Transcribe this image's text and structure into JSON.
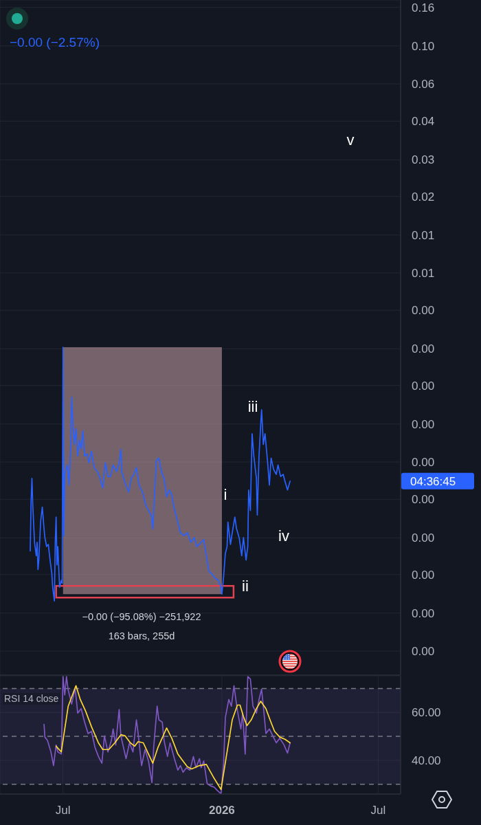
{
  "chart_data": [
    {
      "type": "line",
      "color": "#2962ff",
      "log": true,
      "grid": true,
      "tick_labels": "y",
      "x": [
        "2025-05-24",
        "2025-05-25",
        "2025-05-26",
        "2025-05-27",
        "2025-05-28",
        "2025-05-29",
        "2025-05-31",
        "2025-06-01",
        "2025-06-02",
        "2025-06-03",
        "2025-06-05",
        "2025-06-07",
        "2025-06-09",
        "2025-06-10",
        "2025-06-12",
        "2025-06-14",
        "2025-06-16",
        "2025-06-18",
        "2025-06-19",
        "2025-06-21",
        "2025-06-22",
        "2025-06-23",
        "2025-06-24",
        "2025-06-25",
        "2025-06-27",
        "2025-06-29",
        "2025-06-30",
        "2025-07-01",
        "2025-07-02",
        "2025-07-03",
        "2025-07-06",
        "2025-07-08",
        "2025-07-10",
        "2025-07-11",
        "2025-07-12",
        "2025-07-14",
        "2025-07-16",
        "2025-07-18",
        "2025-07-20",
        "2025-07-22",
        "2025-07-24",
        "2025-07-26",
        "2025-07-29",
        "2025-07-31",
        "2025-08-03",
        "2025-08-06",
        "2025-08-10",
        "2025-08-13",
        "2025-08-16",
        "2025-08-19",
        "2025-08-22",
        "2025-08-25",
        "2025-08-28",
        "2025-09-01",
        "2025-09-04",
        "2025-09-06",
        "2025-09-07",
        "2025-09-11",
        "2025-09-15",
        "2025-09-18",
        "2025-09-21",
        "2025-09-24",
        "2025-09-27",
        "2025-10-01",
        "2025-10-05",
        "2025-10-11",
        "2025-10-13",
        "2025-10-17",
        "2025-10-20",
        "2025-10-23",
        "2025-10-26",
        "2025-10-29",
        "2025-11-01",
        "2025-11-04",
        "2025-11-06",
        "2025-11-10",
        "2025-11-14",
        "2025-11-18",
        "2025-11-22",
        "2025-11-26",
        "2025-11-30",
        "2025-12-03",
        "2025-12-08",
        "2025-12-11",
        "2025-12-14",
        "2025-12-17",
        "2025-12-20",
        "2025-12-24",
        "2025-12-28",
        "2025-12-31",
        "2026-01-01",
        "2026-01-03",
        "2026-01-05",
        "2026-01-07",
        "2026-01-08",
        "2026-01-11",
        "2026-01-13",
        "2026-01-16",
        "2026-01-18",
        "2026-01-21",
        "2026-01-24",
        "2026-01-26",
        "2026-01-29",
        "2026-01-31",
        "2026-02-01",
        "2026-02-03",
        "2026-02-05",
        "2026-02-07",
        "2026-02-10",
        "2026-02-11",
        "2026-02-13",
        "2026-02-15",
        "2026-02-16",
        "2026-02-18",
        "2026-02-20",
        "2026-02-23",
        "2026-02-25",
        "2026-02-27",
        "2026-03-02",
        "2026-03-05",
        "2026-03-07",
        "2026-03-10",
        "2026-03-13",
        "2026-03-15",
        "2026-03-18",
        "2026-03-21"
      ],
      "values": [
        0.000213,
        0.000389,
        0.000516,
        0.00037,
        0.000296,
        0.000237,
        0.000201,
        0.000237,
        0.00017,
        0.000191,
        0.000303,
        0.000364,
        0.000279,
        0.000251,
        0.000225,
        0.000231,
        0.000191,
        0.000162,
        0.000137,
        0.000116,
        0.000237,
        0.000322,
        0.00018,
        0.000225,
        0.000137,
        0.000149,
        0.000144,
        0.00255,
        0.000257,
        0.000542,
        0.000608,
        0.000475,
        0.00078,
        0.00139,
        0.00109,
        0.00078,
        0.000944,
        0.000678,
        0.00082,
        0.000736,
        0.00092,
        0.000678,
        0.000695,
        0.000624,
        0.000718,
        0.000589,
        0.00056,
        0.000516,
        0.000459,
        0.000624,
        0.000528,
        0.000528,
        0.000608,
        0.00056,
        0.000624,
        0.000736,
        0.00056,
        0.000486,
        0.000437,
        0.000516,
        0.000542,
        0.000589,
        0.000475,
        0.000437,
        0.00037,
        0.00033,
        0.000279,
        0.000639,
        0.000661,
        0.00056,
        0.000516,
        0.000412,
        0.000448,
        0.000423,
        0.00037,
        0.000314,
        0.000266,
        0.000257,
        0.000266,
        0.000237,
        0.000251,
        0.000225,
        0.000237,
        0.000245,
        0.000201,
        0.000166,
        0.000162,
        0.000153,
        0.000149,
        0.000137,
        0.000126,
        0.000156,
        0.000207,
        0.000225,
        0.000303,
        0.000231,
        0.000266,
        0.000322,
        0.000279,
        0.000251,
        0.000201,
        0.000251,
        0.000191,
        0.000225,
        0.000448,
        0.000349,
        0.00089,
        0.000678,
        0.000516,
        0.00033,
        0.000678,
        0.001,
        0.00119,
        0.00078,
        0.00089,
        0.000624,
        0.000475,
        0.000661,
        0.000574,
        0.000542,
        0.000608,
        0.000528,
        0.000542,
        0.000499,
        0.000448,
        0.000499
      ],
      "xlim": [
        "2025-04-19",
        "2026-07-27"
      ],
      "xticks": [
        {
          "value": "2025-07-01",
          "label": null
        },
        {
          "value": "2026-01-01",
          "label": null
        },
        {
          "value": "2026-07-01",
          "label": null
        }
      ],
      "ylim": [
        4.7e-05,
        0.175
      ],
      "yticks": [
        0.16,
        {
          "value": 0.1,
          "label": "0.10"
        },
        {
          "value": 0.063,
          "label": "0.06"
        },
        0.04,
        {
          "value": 0.025,
          "label": "0.03"
        },
        {
          "value": 0.016,
          "label": "0.02"
        },
        0.01,
        {
          "value": 0.0063,
          "label": "0.01"
        },
        {
          "value": 0.004,
          "label": "0.00"
        },
        {
          "value": 0.0025,
          "label": "0.00"
        },
        {
          "value": 0.0016,
          "label": "0.00"
        },
        {
          "value": 0.001,
          "label": "0.00"
        },
        {
          "value": 0.00063,
          "label": "0.00"
        },
        {
          "value": 0.0004,
          "label": "0.00"
        },
        {
          "value": 0.00025,
          "label": "0.00"
        },
        {
          "value": 0.00016,
          "label": "0.00"
        },
        {
          "value": 0.0001,
          "label": "0.00"
        },
        {
          "value": 6.3e-05,
          "label": "0.00"
        }
      ],
      "bands": [
        {
          "axis": "x",
          "from": "2025-07-01",
          "to": "2026-01-01",
          "color": "#c9a0a8"
        }
      ],
      "annotations": [
        "−0.00 (−2.57%)",
        "−0.00 (−95.08%) −251,922",
        "163 bars, 255d",
        "i",
        "ii",
        "iii",
        "iv",
        "v",
        "04:36:45"
      ]
    },
    {
      "type": "line",
      "title": "RSI 14 close",
      "grid": true,
      "series": [
        {
          "color": "#7e57c2",
          "x": [
            "2025-06-09",
            "2025-06-10",
            "2025-06-13",
            "2025-06-17",
            "2025-06-20",
            "2025-06-23",
            "2025-06-25",
            "2025-06-29",
            "2025-07-01",
            "2025-07-03",
            "2025-07-05",
            "2025-07-07",
            "2025-07-11",
            "2025-07-15",
            "2025-07-18",
            "2025-07-22",
            "2025-07-26",
            "2025-07-30",
            "2025-08-03",
            "2025-08-07",
            "2025-08-11",
            "2025-08-15",
            "2025-08-18",
            "2025-08-22",
            "2025-08-26",
            "2025-08-28",
            "2025-08-31",
            "2025-09-04",
            "2025-09-06",
            "2025-09-12",
            "2025-09-16",
            "2025-09-20",
            "2025-09-24",
            "2025-09-26",
            "2025-09-30",
            "2025-10-04",
            "2025-10-08",
            "2025-10-12",
            "2025-10-14",
            "2025-10-18",
            "2025-10-20",
            "2025-10-24",
            "2025-10-26",
            "2025-10-30",
            "2025-11-02",
            "2025-11-07",
            "2025-11-11",
            "2025-11-14",
            "2025-11-17",
            "2025-11-21",
            "2025-11-25",
            "2025-11-29",
            "2025-12-02",
            "2025-12-06",
            "2025-12-08",
            "2025-12-11",
            "2025-12-15",
            "2025-12-19",
            "2025-12-23",
            "2025-12-27",
            "2025-12-31",
            "2026-01-03",
            "2026-01-05",
            "2026-01-09",
            "2026-01-12",
            "2026-01-15",
            "2026-01-19",
            "2026-01-23",
            "2026-01-25",
            "2026-01-28",
            "2026-01-31",
            "2026-02-03",
            "2026-02-06",
            "2026-02-10",
            "2026-02-13",
            "2026-02-16",
            "2026-02-18",
            "2026-02-21",
            "2026-02-25",
            "2026-03-01",
            "2026-03-05",
            "2026-03-09",
            "2026-03-14",
            "2026-03-18",
            "2026-03-21"
          ],
          "values": [
            55.0,
            49.7,
            48.3,
            43.5,
            37.8,
            46.4,
            43.5,
            42.6,
            75,
            67.3,
            75,
            69.3,
            63.5,
            70.2,
            59.7,
            61.6,
            55.9,
            51.2,
            52.1,
            45.4,
            41.6,
            38.8,
            50.2,
            43.5,
            48.3,
            53.1,
            46.4,
            61.2,
            50.2,
            40.7,
            47.3,
            43.5,
            56.9,
            51.2,
            37.8,
            44.5,
            39.7,
            30.7,
            45.4,
            62.6,
            56.9,
            55.9,
            48.3,
            41.6,
            47.3,
            40.7,
            35.9,
            37.8,
            35.0,
            36.9,
            35.9,
            41.6,
            36.9,
            40.7,
            36.9,
            39.7,
            30.2,
            29.3,
            28.8,
            27.3,
            26,
            38.8,
            57.8,
            65.4,
            62.6,
            71.2,
            60.7,
            53.1,
            59.7,
            42.6,
            75,
            74,
            62.6,
            59.7,
            65.4,
            69.7,
            62.6,
            51.2,
            53.1,
            50.2,
            47.3,
            49.2,
            46.4,
            43.0,
            47.3
          ]
        },
        {
          "color": "#fdd835",
          "x": [
            "2025-06-23",
            "2025-06-29",
            "2025-07-07",
            "2025-07-16",
            "2025-07-21",
            "2025-07-27",
            "2025-08-03",
            "2025-08-11",
            "2025-08-16",
            "2025-08-23",
            "2025-08-30",
            "2025-09-06",
            "2025-09-11",
            "2025-09-17",
            "2025-09-22",
            "2025-09-26",
            "2025-10-02",
            "2025-10-08",
            "2025-10-13",
            "2025-10-19",
            "2025-10-29",
            "2025-11-04",
            "2025-11-11",
            "2025-11-17",
            "2025-11-22",
            "2025-11-27",
            "2025-12-06",
            "2025-12-14",
            "2025-12-22",
            "2025-12-31",
            "2026-01-07",
            "2026-01-13",
            "2026-01-19",
            "2026-01-22",
            "2026-01-26",
            "2026-01-30",
            "2026-02-04",
            "2026-02-10",
            "2026-02-15",
            "2026-02-21",
            "2026-02-26",
            "2026-03-03",
            "2026-03-09",
            "2026-03-15",
            "2026-03-21"
          ],
          "values": [
            45.9,
            43.5,
            62.6,
            71.2,
            65.4,
            60.7,
            54.0,
            47.3,
            44.5,
            44.5,
            47.3,
            50.7,
            50.2,
            47.3,
            45.9,
            47.8,
            47.3,
            42.6,
            38.8,
            45.4,
            53.5,
            49.2,
            42.6,
            39.7,
            37.3,
            36.4,
            37.8,
            38.3,
            33.1,
            27.8,
            43.5,
            56.9,
            63.1,
            63.1,
            58.3,
            54.5,
            56.9,
            61.6,
            64.7,
            61.6,
            56.7,
            52.1,
            49.7,
            48.8,
            47.3
          ]
        }
      ],
      "xlim": [
        "2025-04-19",
        "2026-07-27"
      ],
      "xticks": [
        {
          "value": "2025-07-01",
          "label": "Jul"
        },
        {
          "value": "2026-01-01",
          "label": "2026"
        },
        {
          "value": "2026-07-01",
          "label": "Jul"
        }
      ],
      "ylim": [
        25.9,
        75.3
      ],
      "yticks": [
        {
          "value": 60,
          "label": "60.00"
        },
        {
          "value": 40,
          "label": "40.00"
        }
      ],
      "bands": [
        {
          "axis": "y",
          "from": 30,
          "to": 70,
          "color": "#7e57c2"
        }
      ],
      "ref_lines": [
        {
          "axis": "y",
          "value": 70,
          "line_style": "dashed",
          "color": "#787b86"
        },
        {
          "axis": "y",
          "value": 50,
          "line_style": "dashed",
          "color": "#787b86"
        },
        {
          "axis": "y",
          "value": 30,
          "line_style": "dashed",
          "color": "#787b86"
        }
      ]
    }
  ]
}
